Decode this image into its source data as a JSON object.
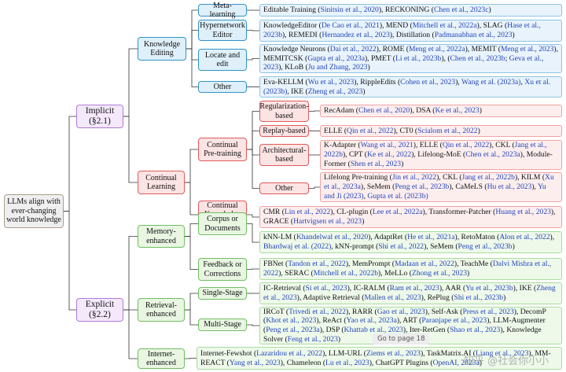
{
  "nodes": {
    "root": "LLMs align with ever-changing world knowledge",
    "implicit": "Implicit (§2.1)",
    "knowledge_editing": "Knowledge Editing",
    "meta_learning": "Meta-learning",
    "hypernetwork_editor": "Hypernetwork Editor",
    "locate_and_edit": "Locate and edit",
    "ke_other": "Other",
    "continual_learning": "Continual Learning",
    "continual_pretraining": "Continual Pre-training",
    "regularization": "Regularization-based",
    "replay": "Replay-based",
    "architectural": "Architectural-based",
    "cpt_other": "Other",
    "cke": "Continual Knowledge Editing",
    "explicit": "Explicit (§2.2)",
    "memory": "Memory-enhanced",
    "corpus": "Corpus or Documents",
    "feedback": "Feedback or Corrections",
    "retrieval": "Retrieval-enhanced",
    "single_stage": "Single-Stage",
    "multi_stage": "Multi-Stage",
    "internet": "Internet-enhanced"
  },
  "works": {
    "meta_learning": [
      "Editable Training (",
      "Sinitsin et al., 2020",
      "), RECKONING (",
      "Chen et al., 2023c",
      ")"
    ],
    "hypernetwork_editor": [
      "KnowledgeEditor (",
      "De Cao et al., 2021",
      "), MEND (",
      "Mitchell et al., 2022a",
      "), SLAG (",
      "Hase et al., 2023b",
      "), REMEDI (",
      "Hernandez et al., 2023",
      "), Distillation (",
      "Padmanabhan et al., 2023",
      ")"
    ],
    "locate_and_edit": [
      "Knowledge Neurons (",
      "Dai et al., 2022",
      "), ROME (",
      "Meng et al., 2022a",
      "), MEMIT (",
      "Meng et al., 2023",
      "), MEMITCSK (",
      "Gupta et al., 2023a",
      "), PMET (",
      "Li et al., 2023b",
      "), (",
      "Chen et al., 2023b",
      "; ",
      "Geva et al., 2023",
      "), KLoB (",
      "Ju and Zhang, 2023",
      ")"
    ],
    "ke_other": [
      "Eva-KELLM (",
      "Wu et al., 2023",
      "), RippleEdits (",
      "Cohen et al., 2023",
      "), ",
      "Wang et al. (2023a)",
      ", ",
      "Xu et al. (2023b)",
      ", IKE (",
      "Zheng et al., 2023",
      ")"
    ],
    "regularization": [
      "RecAdam (",
      "Chen et al., 2020",
      "), DSA (",
      "Ke et al., 2023",
      ")"
    ],
    "replay": [
      "ELLE (",
      "Qin et al., 2022",
      "), CT0 (",
      "Scialom et al., 2022",
      ")"
    ],
    "architectural": [
      "K-Adapter (",
      "Wang et al., 2021",
      "), ELLE (",
      "Qin et al., 2022",
      "), CKL (",
      "Jang et al., 2022b",
      "), CPT (",
      "Ke et al., 2022",
      "), Lifelong-MoE (",
      "Chen et al., 2023a",
      "), Module-Former (",
      "Shen et al., 2023",
      ")"
    ],
    "cpt_other": [
      "Lifelong Pre-training (",
      "Jin et al., 2022",
      "), CKL (",
      "Jang et al., 2022b",
      "), KILM (",
      "Xu et al., 2023a",
      "), SeMem (",
      "Peng et al., 2023b",
      "), CaMeLS (",
      "Hu et al., 2023",
      "), ",
      "Yu and Ji (2023)",
      ", ",
      "Gupta et al. (2023b)"
    ],
    "cke": [
      "CMR (",
      "Lin et al., 2022",
      "), CL-plugin (",
      "Lee et al., 2022a",
      "), Transformer-Patcher (",
      "Huang et al., 2023",
      "), GRACE (",
      "Hartvigsen et al., 2023",
      ")"
    ],
    "corpus": [
      "kNN-LM (",
      "Khandelwal et al., 2020",
      "), AdaptRet (",
      "He et al., 2021a",
      "), RetoMaton (",
      "Alon et al., 2022",
      "), ",
      "Bhardwaj et al. (2022)",
      ", kNN-prompt (",
      "Shi et al., 2022",
      "), SeMem (",
      "Peng et al., 2023b",
      ")"
    ],
    "feedback": [
      "FBNet (",
      "Tandon et al., 2022",
      "), MemPrompt (",
      "Madaan et al., 2022",
      "), TeachMe (",
      "Dalvi Mishra et al., 2022",
      "), SERAC (",
      "Mitchell et al., 2022b",
      "), MeLLo (",
      "Zhong et al., 2023",
      ")"
    ],
    "single_stage": [
      "IC-Retrieval (",
      "Si et al., 2023",
      "), IC-RALM (",
      "Ram et al., 2023",
      "), AAR (",
      "Yu et al., 2023b",
      "), IKE (",
      "Zheng et al., 2023",
      "), Adaptive Retrieval (",
      "Mallen et al., 2023",
      "), RePlug (",
      "Shi et al., 2023b",
      ")"
    ],
    "multi_stage": [
      "IRCoT (",
      "Trivedi et al., 2022",
      "), RARR (",
      "Gao et al., 2023",
      "), Self-Ask (",
      "Press et al., 2023",
      "), DecomP (",
      "Khot et al., 2023",
      "), ReAct (",
      "Yao et al., 2023a",
      "), ART (",
      "Paranjape et al., 2023",
      "), LLM-Augmenter (",
      "Peng et al., 2023a",
      "), DSP (",
      "Khattab et al., 2023",
      "), Iter-RetGen (",
      "Shao et al., 2023",
      "), Knowledge Solver (",
      "Feng et al., 2023",
      ")"
    ],
    "internet": [
      "Internet-Fewshot (",
      "Lazaridou et al., 2022",
      "), LLM-URL (",
      "Ziems et al., 2023",
      "), TaskMatrix.AI (",
      "Liang et al., 2023",
      "), MM-REACT (",
      "Yang et al., 2023",
      "), Chameleon (",
      "Lu et al., 2023",
      "), ChatGPT Plugins (",
      "OpenAI, 2023a",
      ")"
    ]
  },
  "overlay": {
    "tooltip": "Go to page 18",
    "watermark": "知乎 @社会你小小"
  }
}
